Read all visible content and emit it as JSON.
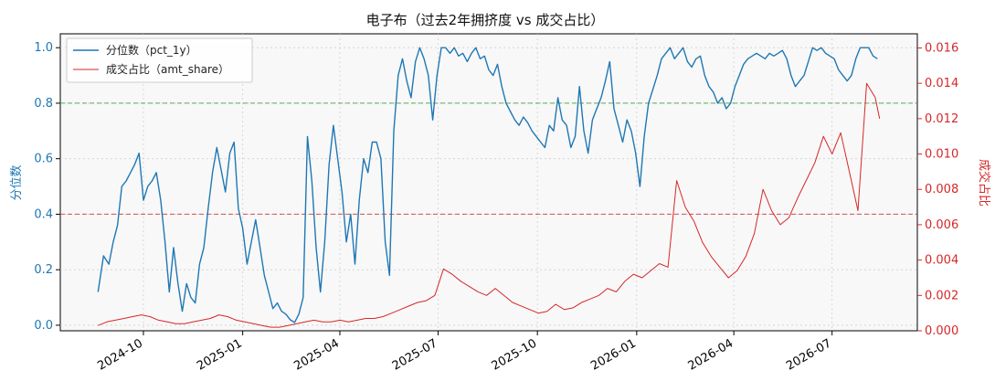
{
  "chart_data": {
    "type": "line",
    "title": "电子布（过去2年拥挤度 vs 成交占比）",
    "y_left_label": "分位数",
    "y_right_label": "成交占比",
    "left_ylim": [
      -0.02,
      1.05
    ],
    "right_ylim": [
      0.0,
      0.0168
    ],
    "left_ticks": [
      "0.0",
      "0.2",
      "0.4",
      "0.6",
      "0.8",
      "1.0"
    ],
    "right_ticks": [
      "0.000",
      "0.002",
      "0.004",
      "0.006",
      "0.008",
      "0.010",
      "0.012",
      "0.014",
      "0.016"
    ],
    "x_ticks": [
      "2024-10",
      "2025-01",
      "2025-04",
      "2025-07",
      "2025-10",
      "2026-01",
      "2026-04",
      "2026-07"
    ],
    "reference_lines": [
      {
        "axis": "left",
        "value": 0.8,
        "color": "#2ca02c",
        "style": "dashed"
      },
      {
        "axis": "left",
        "value": 0.4,
        "color": "#d62728",
        "style": "dashed"
      }
    ],
    "grid": true,
    "legend_position": "top-left",
    "colors": {
      "pct": "#1f77b4",
      "share": "#d62728",
      "background": "#f8f8f8"
    },
    "series": [
      {
        "name": "分位数（pct_1y）",
        "axis": "left",
        "points": [
          [
            "2024-08-20",
            0.12
          ],
          [
            "2024-08-25",
            0.25
          ],
          [
            "2024-08-30",
            0.22
          ],
          [
            "2024-09-03",
            0.3
          ],
          [
            "2024-09-07",
            0.36
          ],
          [
            "2024-09-11",
            0.5
          ],
          [
            "2024-09-15",
            0.52
          ],
          [
            "2024-09-19",
            0.55
          ],
          [
            "2024-09-23",
            0.58
          ],
          [
            "2024-09-27",
            0.62
          ],
          [
            "2024-10-01",
            0.45
          ],
          [
            "2024-10-05",
            0.5
          ],
          [
            "2024-10-09",
            0.52
          ],
          [
            "2024-10-13",
            0.55
          ],
          [
            "2024-10-17",
            0.45
          ],
          [
            "2024-10-21",
            0.3
          ],
          [
            "2024-10-25",
            0.12
          ],
          [
            "2024-10-29",
            0.28
          ],
          [
            "2024-11-02",
            0.15
          ],
          [
            "2024-11-06",
            0.05
          ],
          [
            "2024-11-10",
            0.15
          ],
          [
            "2024-11-14",
            0.1
          ],
          [
            "2024-11-18",
            0.08
          ],
          [
            "2024-11-22",
            0.22
          ],
          [
            "2024-11-26",
            0.28
          ],
          [
            "2024-11-30",
            0.42
          ],
          [
            "2024-12-04",
            0.55
          ],
          [
            "2024-12-08",
            0.64
          ],
          [
            "2024-12-12",
            0.56
          ],
          [
            "2024-12-16",
            0.48
          ],
          [
            "2024-12-20",
            0.62
          ],
          [
            "2024-12-24",
            0.66
          ],
          [
            "2024-12-28",
            0.42
          ],
          [
            "2025-01-01",
            0.35
          ],
          [
            "2025-01-05",
            0.22
          ],
          [
            "2025-01-09",
            0.3
          ],
          [
            "2025-01-13",
            0.38
          ],
          [
            "2025-01-17",
            0.28
          ],
          [
            "2025-01-21",
            0.18
          ],
          [
            "2025-01-25",
            0.12
          ],
          [
            "2025-01-29",
            0.06
          ],
          [
            "2025-02-02",
            0.08
          ],
          [
            "2025-02-06",
            0.05
          ],
          [
            "2025-02-10",
            0.04
          ],
          [
            "2025-02-14",
            0.02
          ],
          [
            "2025-02-18",
            0.01
          ],
          [
            "2025-02-22",
            0.04
          ],
          [
            "2025-02-26",
            0.1
          ],
          [
            "2025-03-02",
            0.68
          ],
          [
            "2025-03-06",
            0.52
          ],
          [
            "2025-03-10",
            0.28
          ],
          [
            "2025-03-14",
            0.12
          ],
          [
            "2025-03-18",
            0.3
          ],
          [
            "2025-03-22",
            0.58
          ],
          [
            "2025-03-26",
            0.72
          ],
          [
            "2025-03-30",
            0.6
          ],
          [
            "2025-04-03",
            0.48
          ],
          [
            "2025-04-07",
            0.3
          ],
          [
            "2025-04-11",
            0.4
          ],
          [
            "2025-04-15",
            0.22
          ],
          [
            "2025-04-19",
            0.45
          ],
          [
            "2025-04-23",
            0.6
          ],
          [
            "2025-04-27",
            0.55
          ],
          [
            "2025-05-01",
            0.66
          ],
          [
            "2025-05-05",
            0.66
          ],
          [
            "2025-05-09",
            0.6
          ],
          [
            "2025-05-13",
            0.3
          ],
          [
            "2025-05-17",
            0.18
          ],
          [
            "2025-05-21",
            0.7
          ],
          [
            "2025-05-25",
            0.9
          ],
          [
            "2025-05-29",
            0.96
          ],
          [
            "2025-06-02",
            0.88
          ],
          [
            "2025-06-06",
            0.82
          ],
          [
            "2025-06-10",
            0.95
          ],
          [
            "2025-06-14",
            1.0
          ],
          [
            "2025-06-18",
            0.96
          ],
          [
            "2025-06-22",
            0.9
          ],
          [
            "2025-06-26",
            0.74
          ],
          [
            "2025-06-30",
            0.9
          ],
          [
            "2025-07-04",
            1.0
          ],
          [
            "2025-07-08",
            1.0
          ],
          [
            "2025-07-12",
            0.98
          ],
          [
            "2025-07-16",
            1.0
          ],
          [
            "2025-07-20",
            0.97
          ],
          [
            "2025-07-24",
            0.98
          ],
          [
            "2025-07-28",
            0.95
          ],
          [
            "2025-08-01",
            0.98
          ],
          [
            "2025-08-05",
            1.0
          ],
          [
            "2025-08-09",
            0.96
          ],
          [
            "2025-08-13",
            0.97
          ],
          [
            "2025-08-17",
            0.92
          ],
          [
            "2025-08-21",
            0.9
          ],
          [
            "2025-08-25",
            0.94
          ],
          [
            "2025-08-29",
            0.86
          ],
          [
            "2025-09-02",
            0.8
          ],
          [
            "2025-09-06",
            0.77
          ],
          [
            "2025-09-10",
            0.74
          ],
          [
            "2025-09-14",
            0.72
          ],
          [
            "2025-09-18",
            0.75
          ],
          [
            "2025-09-22",
            0.73
          ],
          [
            "2025-09-26",
            0.7
          ],
          [
            "2025-09-30",
            0.68
          ],
          [
            "2025-10-04",
            0.66
          ],
          [
            "2025-10-08",
            0.64
          ],
          [
            "2025-10-12",
            0.72
          ],
          [
            "2025-10-16",
            0.7
          ],
          [
            "2025-10-20",
            0.82
          ],
          [
            "2025-10-24",
            0.74
          ],
          [
            "2025-10-28",
            0.72
          ],
          [
            "2025-11-01",
            0.64
          ],
          [
            "2025-11-05",
            0.68
          ],
          [
            "2025-11-09",
            0.86
          ],
          [
            "2025-11-13",
            0.7
          ],
          [
            "2025-11-17",
            0.62
          ],
          [
            "2025-11-21",
            0.74
          ],
          [
            "2025-11-25",
            0.78
          ],
          [
            "2025-11-29",
            0.82
          ],
          [
            "2025-12-03",
            0.88
          ],
          [
            "2025-12-07",
            0.95
          ],
          [
            "2025-12-11",
            0.78
          ],
          [
            "2025-12-15",
            0.72
          ],
          [
            "2025-12-19",
            0.66
          ],
          [
            "2025-12-23",
            0.74
          ],
          [
            "2025-12-27",
            0.7
          ],
          [
            "2025-12-31",
            0.62
          ],
          [
            "2026-01-04",
            0.5
          ],
          [
            "2026-01-08",
            0.68
          ],
          [
            "2026-01-12",
            0.8
          ],
          [
            "2026-01-16",
            0.85
          ],
          [
            "2026-01-20",
            0.9
          ],
          [
            "2026-01-24",
            0.96
          ],
          [
            "2026-01-28",
            0.98
          ],
          [
            "2026-02-01",
            1.0
          ],
          [
            "2026-02-05",
            0.96
          ],
          [
            "2026-02-09",
            0.98
          ],
          [
            "2026-02-13",
            1.0
          ],
          [
            "2026-02-17",
            0.95
          ],
          [
            "2026-02-21",
            0.93
          ],
          [
            "2026-02-25",
            0.96
          ],
          [
            "2026-03-01",
            0.97
          ],
          [
            "2026-03-05",
            0.9
          ],
          [
            "2026-03-09",
            0.86
          ],
          [
            "2026-03-13",
            0.84
          ],
          [
            "2026-03-17",
            0.8
          ],
          [
            "2026-03-21",
            0.82
          ],
          [
            "2026-03-25",
            0.78
          ],
          [
            "2026-03-29",
            0.8
          ],
          [
            "2026-04-02",
            0.86
          ],
          [
            "2026-04-06",
            0.9
          ],
          [
            "2026-04-10",
            0.94
          ],
          [
            "2026-04-14",
            0.96
          ],
          [
            "2026-04-18",
            0.97
          ],
          [
            "2026-04-22",
            0.98
          ],
          [
            "2026-04-26",
            0.97
          ],
          [
            "2026-04-30",
            0.96
          ],
          [
            "2026-05-04",
            0.98
          ],
          [
            "2026-05-08",
            0.97
          ],
          [
            "2026-05-12",
            0.98
          ],
          [
            "2026-05-16",
            0.99
          ],
          [
            "2026-05-20",
            0.96
          ],
          [
            "2026-05-24",
            0.9
          ],
          [
            "2026-05-28",
            0.86
          ],
          [
            "2026-06-01",
            0.88
          ],
          [
            "2026-06-05",
            0.9
          ],
          [
            "2026-06-09",
            0.95
          ],
          [
            "2026-06-13",
            1.0
          ],
          [
            "2026-06-17",
            0.99
          ],
          [
            "2026-06-21",
            1.0
          ],
          [
            "2026-06-25",
            0.98
          ],
          [
            "2026-06-29",
            0.97
          ],
          [
            "2026-07-03",
            0.96
          ],
          [
            "2026-07-07",
            0.92
          ],
          [
            "2026-07-11",
            0.9
          ],
          [
            "2026-07-15",
            0.88
          ],
          [
            "2026-07-19",
            0.9
          ],
          [
            "2026-07-23",
            0.96
          ],
          [
            "2026-07-27",
            1.0
          ],
          [
            "2026-07-31",
            1.0
          ],
          [
            "2026-08-04",
            1.0
          ],
          [
            "2026-08-08",
            0.97
          ],
          [
            "2026-08-12",
            0.96
          ]
        ]
      },
      {
        "name": "成交占比（amt_share）",
        "axis": "right",
        "points": [
          [
            "2024-08-20",
            0.0003
          ],
          [
            "2024-08-28",
            0.0005
          ],
          [
            "2024-09-05",
            0.0006
          ],
          [
            "2024-09-13",
            0.0007
          ],
          [
            "2024-09-21",
            0.0008
          ],
          [
            "2024-09-29",
            0.0009
          ],
          [
            "2024-10-07",
            0.0008
          ],
          [
            "2024-10-15",
            0.0006
          ],
          [
            "2024-10-23",
            0.0005
          ],
          [
            "2024-10-31",
            0.0004
          ],
          [
            "2024-11-08",
            0.0004
          ],
          [
            "2024-11-16",
            0.0005
          ],
          [
            "2024-11-24",
            0.0006
          ],
          [
            "2024-12-02",
            0.0007
          ],
          [
            "2024-12-10",
            0.0009
          ],
          [
            "2024-12-18",
            0.0008
          ],
          [
            "2024-12-26",
            0.0006
          ],
          [
            "2025-01-03",
            0.0005
          ],
          [
            "2025-01-11",
            0.0004
          ],
          [
            "2025-01-19",
            0.0003
          ],
          [
            "2025-01-27",
            0.0002
          ],
          [
            "2025-02-04",
            0.0002
          ],
          [
            "2025-02-12",
            0.0003
          ],
          [
            "2025-02-20",
            0.0004
          ],
          [
            "2025-02-28",
            0.0005
          ],
          [
            "2025-03-08",
            0.0006
          ],
          [
            "2025-03-16",
            0.0005
          ],
          [
            "2025-03-24",
            0.0005
          ],
          [
            "2025-04-01",
            0.0006
          ],
          [
            "2025-04-09",
            0.0005
          ],
          [
            "2025-04-17",
            0.0006
          ],
          [
            "2025-04-25",
            0.0007
          ],
          [
            "2025-05-03",
            0.0007
          ],
          [
            "2025-05-11",
            0.0008
          ],
          [
            "2025-05-19",
            0.001
          ],
          [
            "2025-05-27",
            0.0012
          ],
          [
            "2025-06-04",
            0.0014
          ],
          [
            "2025-06-12",
            0.0016
          ],
          [
            "2025-06-20",
            0.0017
          ],
          [
            "2025-06-28",
            0.002
          ],
          [
            "2025-07-06",
            0.0035
          ],
          [
            "2025-07-14",
            0.0032
          ],
          [
            "2025-07-22",
            0.0028
          ],
          [
            "2025-07-30",
            0.0025
          ],
          [
            "2025-08-07",
            0.0022
          ],
          [
            "2025-08-15",
            0.002
          ],
          [
            "2025-08-23",
            0.0024
          ],
          [
            "2025-08-31",
            0.002
          ],
          [
            "2025-09-08",
            0.0016
          ],
          [
            "2025-09-16",
            0.0014
          ],
          [
            "2025-09-24",
            0.0012
          ],
          [
            "2025-10-02",
            0.001
          ],
          [
            "2025-10-10",
            0.0011
          ],
          [
            "2025-10-18",
            0.0015
          ],
          [
            "2025-10-26",
            0.0012
          ],
          [
            "2025-11-03",
            0.0013
          ],
          [
            "2025-11-11",
            0.0016
          ],
          [
            "2025-11-19",
            0.0018
          ],
          [
            "2025-11-27",
            0.002
          ],
          [
            "2025-12-05",
            0.0024
          ],
          [
            "2025-12-13",
            0.0022
          ],
          [
            "2025-12-21",
            0.0028
          ],
          [
            "2025-12-29",
            0.0032
          ],
          [
            "2026-01-06",
            0.003
          ],
          [
            "2026-01-14",
            0.0034
          ],
          [
            "2026-01-22",
            0.0038
          ],
          [
            "2026-01-30",
            0.0036
          ],
          [
            "2026-02-07",
            0.0085
          ],
          [
            "2026-02-15",
            0.007
          ],
          [
            "2026-02-23",
            0.0062
          ],
          [
            "2026-03-03",
            0.005
          ],
          [
            "2026-03-11",
            0.0042
          ],
          [
            "2026-03-19",
            0.0036
          ],
          [
            "2026-03-27",
            0.003
          ],
          [
            "2026-04-04",
            0.0034
          ],
          [
            "2026-04-12",
            0.0042
          ],
          [
            "2026-04-20",
            0.0055
          ],
          [
            "2026-04-28",
            0.008
          ],
          [
            "2026-05-06",
            0.0068
          ],
          [
            "2026-05-14",
            0.006
          ],
          [
            "2026-05-22",
            0.0064
          ],
          [
            "2026-05-30",
            0.0075
          ],
          [
            "2026-06-07",
            0.0085
          ],
          [
            "2026-06-15",
            0.0095
          ],
          [
            "2026-06-23",
            0.011
          ],
          [
            "2026-07-01",
            0.01
          ],
          [
            "2026-07-09",
            0.0112
          ],
          [
            "2026-07-17",
            0.009
          ],
          [
            "2026-07-25",
            0.0068
          ],
          [
            "2026-08-02",
            0.014
          ],
          [
            "2026-08-10",
            0.0132
          ],
          [
            "2026-08-14",
            0.012
          ]
        ]
      }
    ]
  }
}
